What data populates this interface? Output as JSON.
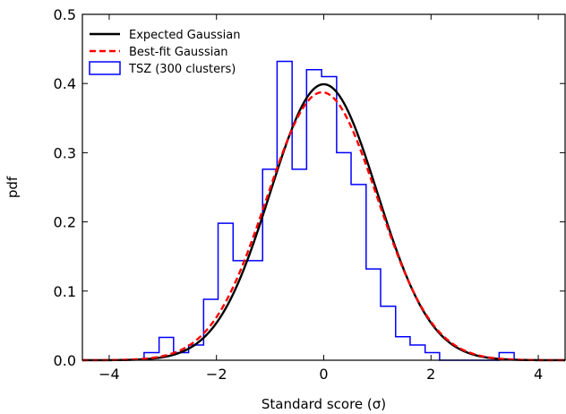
{
  "chart_data": {
    "type": "line",
    "xlabel": "Standard score (σ)",
    "ylabel": "pdf",
    "xlim": [
      -4.5,
      4.5
    ],
    "ylim": [
      0.0,
      0.5
    ],
    "xticks": [
      -4,
      -2,
      0,
      2,
      4
    ],
    "xtick_labels": [
      "−4",
      "−2",
      "0",
      "2",
      "4"
    ],
    "yticks": [
      0.0,
      0.1,
      0.2,
      0.3,
      0.4,
      0.5
    ],
    "ytick_labels": [
      "0.0",
      "0.1",
      "0.2",
      "0.3",
      "0.4",
      "0.5"
    ],
    "grid": false,
    "legend_position": "top-left",
    "series": [
      {
        "name": "Expected Gaussian",
        "kind": "curve",
        "mean": 0.0,
        "std": 1.0,
        "color": "#000000",
        "dash": "solid"
      },
      {
        "name": "Best-fit Gaussian",
        "kind": "curve",
        "mean": -0.03,
        "std": 1.03,
        "color": "#ff0000",
        "dash": "dashed"
      },
      {
        "name": "TSZ (300 clusters)",
        "kind": "step-histogram",
        "color": "#0000ff",
        "bin_edges": [
          -3.35,
          -3.07,
          -2.8,
          -2.52,
          -2.24,
          -1.97,
          -1.69,
          -1.42,
          -1.14,
          -0.87,
          -0.59,
          -0.32,
          -0.04,
          0.24,
          0.51,
          0.79,
          1.06,
          1.34,
          1.61,
          1.89,
          2.16,
          2.44,
          2.71,
          2.99,
          3.27,
          3.55
        ],
        "values": [
          0.011,
          0.033,
          0.011,
          0.022,
          0.088,
          0.198,
          0.144,
          0.144,
          0.276,
          0.432,
          0.276,
          0.42,
          0.41,
          0.3,
          0.254,
          0.132,
          0.078,
          0.034,
          0.022,
          0.011,
          0.0,
          0.0,
          0.0,
          0.0,
          0.011
        ]
      }
    ]
  }
}
